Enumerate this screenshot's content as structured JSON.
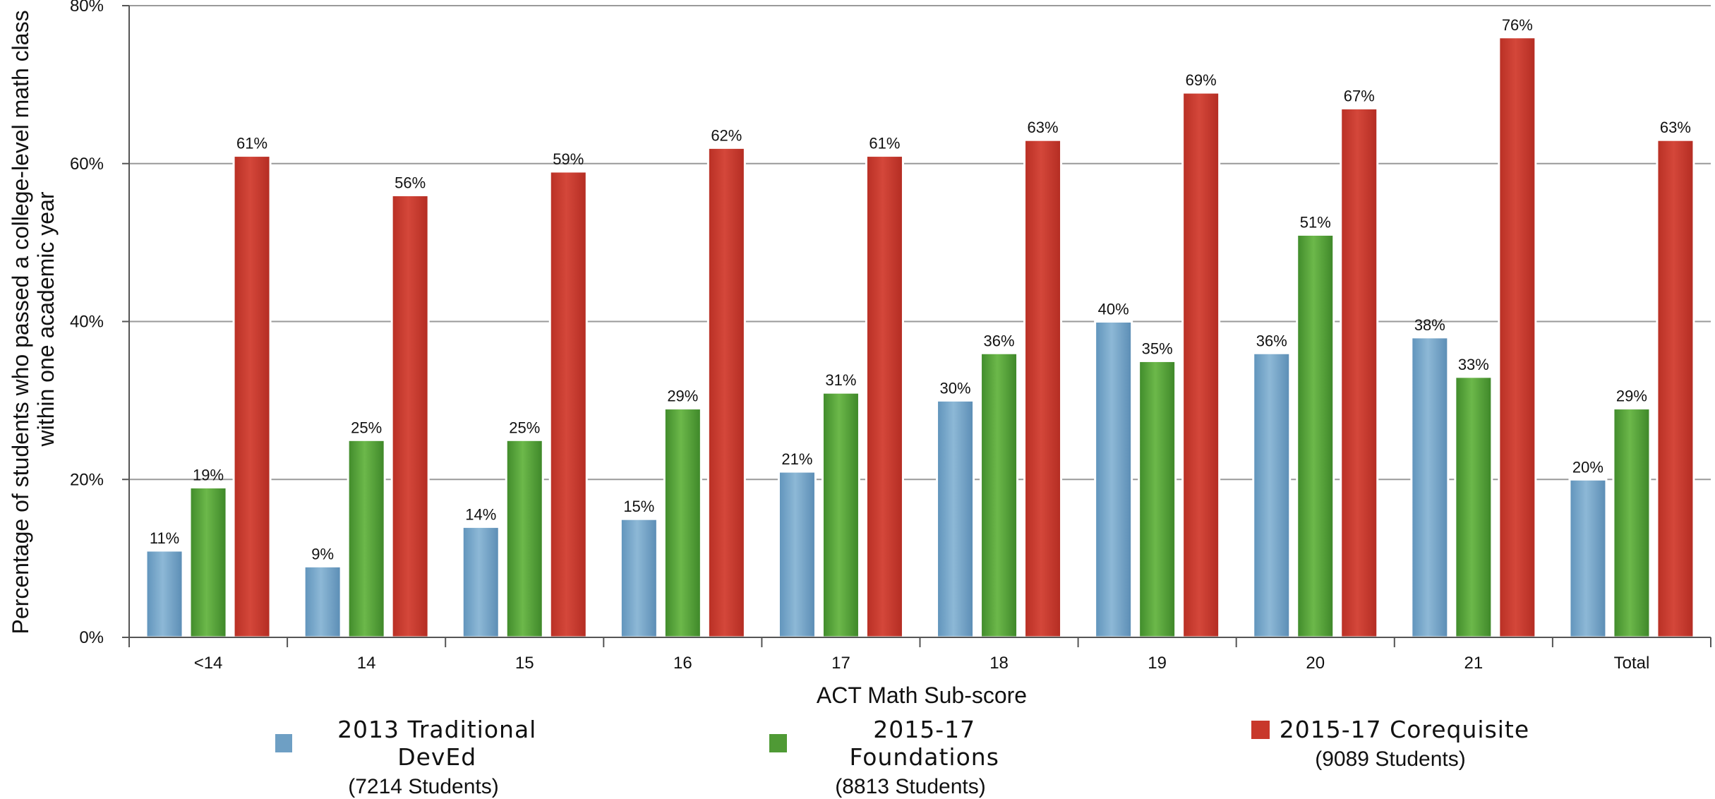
{
  "chart_data": {
    "type": "bar",
    "ylabel": "Percentage of students who passed a college-level math class within one academic year",
    "ylabel_lines": [
      "Percentage of students who passed a college-level math class",
      "within one academic year"
    ],
    "xlabel": "ACT Math Sub-score",
    "ylim": [
      0,
      80
    ],
    "yticks": [
      "0%",
      "20%",
      "40%",
      "60%",
      "80%"
    ],
    "ytick_values": [
      0,
      20,
      40,
      60,
      80
    ],
    "grid": true,
    "legend_position": "bottom",
    "categories": [
      "<14",
      "14",
      "15",
      "16",
      "17",
      "18",
      "19",
      "20",
      "21",
      "Total"
    ],
    "series": [
      {
        "name": "2013 Traditional DevEd",
        "subtitle": "(7214 Students)",
        "color": "#6e9fc4",
        "values": [
          11,
          9,
          14,
          15,
          21,
          30,
          40,
          36,
          38,
          20
        ],
        "labels": [
          "11%",
          "9%",
          "14%",
          "15%",
          "21%",
          "30%",
          "40%",
          "36%",
          "38%",
          "20%"
        ]
      },
      {
        "name": "2015-17 Foundations",
        "subtitle": "(8813 Students)",
        "color": "#4f9a35",
        "values": [
          19,
          25,
          25,
          29,
          31,
          36,
          35,
          51,
          33,
          29
        ],
        "labels": [
          "19%",
          "25%",
          "25%",
          "29%",
          "31%",
          "36%",
          "35%",
          "51%",
          "33%",
          "29%"
        ]
      },
      {
        "name": "2015-17 Corequisite",
        "subtitle": "(9089 Students)",
        "color": "#c8382b",
        "values": [
          61,
          56,
          59,
          62,
          61,
          63,
          69,
          67,
          76,
          63
        ],
        "labels": [
          "61%",
          "56%",
          "59%",
          "62%",
          "61%",
          "63%",
          "69%",
          "67%",
          "76%",
          "63%"
        ]
      }
    ]
  }
}
